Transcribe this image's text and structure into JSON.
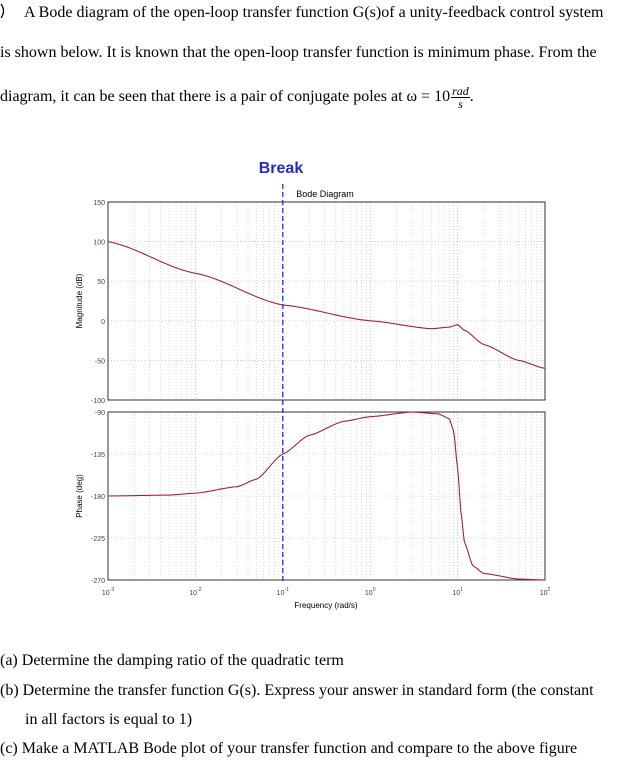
{
  "problem": {
    "line1": "A Bode diagram of the open-loop transfer function G(s)of a unity-feedback control system",
    "line2": "is shown below. It is known that the open-loop transfer function is minimum phase. From the",
    "line3_prefix": "diagram, it can be seen that there is a pair of conjugate poles at ω = 10",
    "unit_num": "rad",
    "unit_den": "s",
    "line3_suffix": "."
  },
  "figure": {
    "annotation": "Break",
    "title": "Bode Diagram",
    "xlabel": "Frequency (rad/s)",
    "mag_ylabel": "Magnitude (dB)",
    "phase_ylabel": "Phase (deg)",
    "mag_ticks": [
      "150",
      "100",
      "50",
      "0",
      "-50",
      "-100"
    ],
    "phase_ticks": [
      "-90",
      "-135",
      "-180",
      "-225",
      "-270"
    ],
    "x_ticks": [
      {
        "base": "10",
        "exp": "-3"
      },
      {
        "base": "10",
        "exp": "-2"
      },
      {
        "base": "10",
        "exp": "-1"
      },
      {
        "base": "10",
        "exp": "0"
      },
      {
        "base": "10",
        "exp": "1"
      },
      {
        "base": "10",
        "exp": "2"
      }
    ],
    "colors": {
      "curve": "#a0213f",
      "break_line": "#2a2ad8",
      "annotation": "#2a2ab8",
      "grid": "#b8b8b8"
    }
  },
  "chart_data": {
    "type": "line",
    "title": "Bode Diagram",
    "xlabel": "Frequency (rad/s)",
    "xscale": "log",
    "xlim": [
      0.001,
      100
    ],
    "break_frequency": 0.1,
    "grid": true,
    "subplots": [
      {
        "ylabel": "Magnitude (dB)",
        "ylim": [
          -100,
          150
        ],
        "x": [
          0.001,
          0.01,
          0.1,
          1,
          5,
          8,
          10,
          12,
          20,
          50,
          100
        ],
        "values": [
          100,
          60,
          20,
          0,
          -10,
          -8,
          -5,
          -12,
          -30,
          -50,
          -60
        ]
      },
      {
        "ylabel": "Phase (deg)",
        "ylim": [
          -270,
          -90
        ],
        "x": [
          0.001,
          0.005,
          0.01,
          0.03,
          0.05,
          0.1,
          0.2,
          0.5,
          1,
          3,
          6,
          8,
          9,
          10,
          11,
          12,
          15,
          20,
          50,
          100
        ],
        "values": [
          -180,
          -179,
          -177,
          -170,
          -162,
          -135,
          -115,
          -100,
          -95,
          -90,
          -92,
          -97,
          -110,
          -150,
          -200,
          -230,
          -255,
          -263,
          -269,
          -270
        ]
      }
    ]
  },
  "questions": [
    {
      "label": "(a)",
      "text": "Determine the damping ratio of the quadratic term"
    },
    {
      "label": "(b)",
      "text": "Determine the transfer function G(s). Express your answer in standard form (the constant",
      "cont": "in all factors is equal to 1)"
    },
    {
      "label": "(c)",
      "text": "Make a MATLAB Bode plot of your transfer function and compare to the above figure"
    }
  ]
}
